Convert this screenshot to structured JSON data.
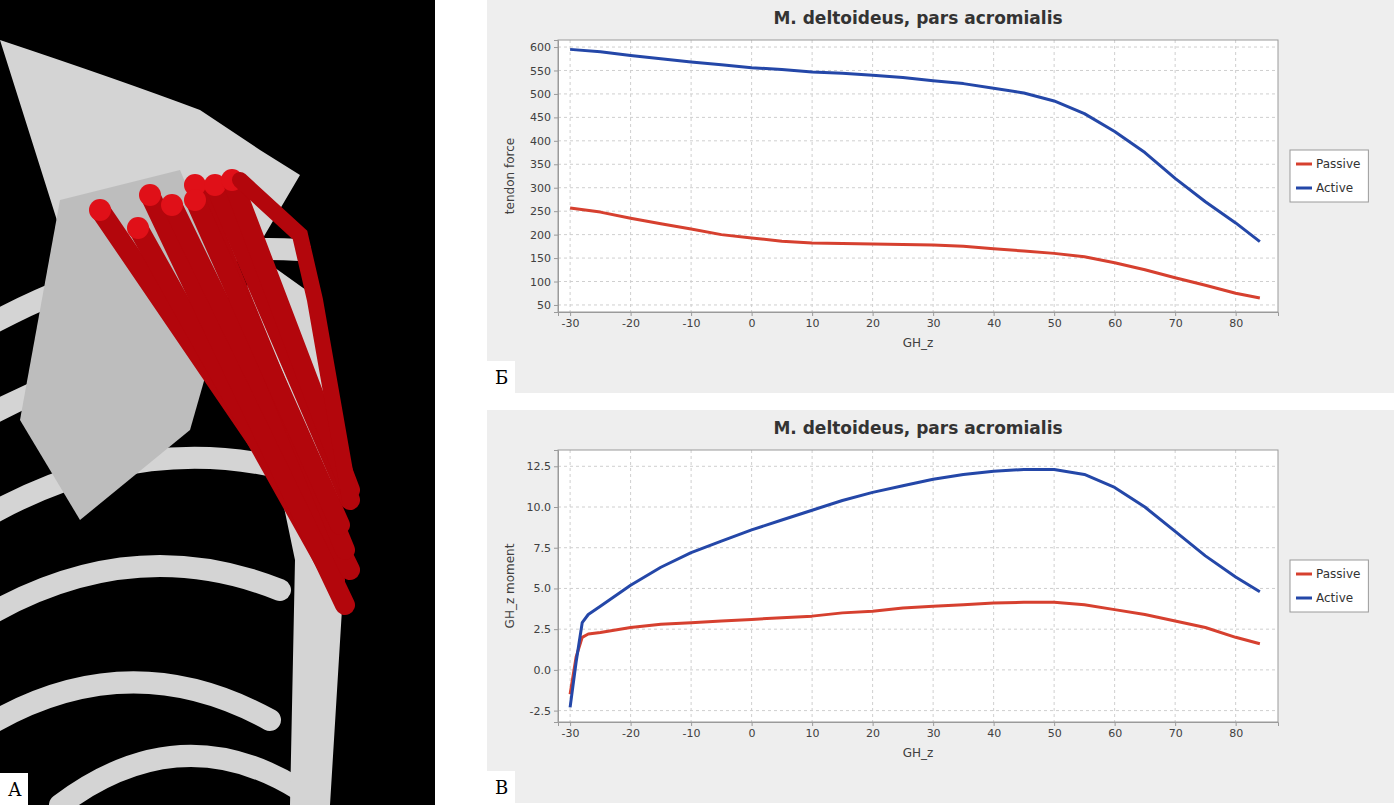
{
  "image_panel": {
    "label": "А"
  },
  "chart_data": [
    {
      "type": "line",
      "panel_label": "Б",
      "title": "M. deltoideus, pars acromialis",
      "x_label": "GH_z",
      "y_label": "tendon force",
      "x": [
        -30,
        -25,
        -20,
        -15,
        -10,
        -5,
        0,
        5,
        10,
        15,
        20,
        25,
        30,
        35,
        40,
        45,
        50,
        55,
        60,
        65,
        70,
        75,
        80,
        84
      ],
      "series": [
        {
          "name": "Passive",
          "color": "#d6402f",
          "line_style": "solid",
          "values": [
            257,
            248,
            235,
            223,
            212,
            200,
            193,
            186,
            182,
            181,
            180,
            179,
            178,
            175,
            170,
            165,
            160,
            153,
            140,
            125,
            108,
            92,
            75,
            65
          ]
        },
        {
          "name": "Active",
          "color": "#2447a8",
          "line_style": "solid",
          "values": [
            595,
            590,
            582,
            575,
            568,
            562,
            556,
            552,
            547,
            544,
            540,
            535,
            528,
            522,
            512,
            502,
            485,
            458,
            420,
            375,
            320,
            270,
            225,
            185
          ]
        }
      ],
      "xlim": [
        -32,
        87
      ],
      "xticks": [
        -30,
        -20,
        -10,
        0,
        10,
        20,
        30,
        40,
        50,
        60,
        70,
        80
      ],
      "ylim": [
        35,
        615
      ],
      "yticks": [
        50,
        100,
        150,
        200,
        250,
        300,
        350,
        400,
        450,
        500,
        550,
        600
      ],
      "grid": true,
      "legend": "right"
    },
    {
      "type": "line",
      "panel_label": "В",
      "title": "M. deltoideus, pars acromialis",
      "x_label": "GH_z",
      "y_label": "GH_z moment",
      "x": [
        -30,
        -29,
        -28,
        -27,
        -25,
        -20,
        -15,
        -10,
        -5,
        0,
        5,
        10,
        15,
        20,
        25,
        30,
        35,
        40,
        45,
        50,
        55,
        60,
        65,
        70,
        75,
        80,
        84
      ],
      "series": [
        {
          "name": "Passive",
          "color": "#d6402f",
          "line_style": "solid",
          "values": [
            -1.5,
            0.8,
            2.0,
            2.2,
            2.3,
            2.6,
            2.8,
            2.9,
            3.0,
            3.1,
            3.2,
            3.3,
            3.5,
            3.6,
            3.8,
            3.9,
            4.0,
            4.1,
            4.15,
            4.15,
            4.0,
            3.7,
            3.4,
            3.0,
            2.6,
            2.0,
            1.6
          ]
        },
        {
          "name": "Active",
          "color": "#2447a8",
          "line_style": "solid",
          "values": [
            -2.3,
            0.5,
            2.9,
            3.4,
            3.9,
            5.2,
            6.3,
            7.2,
            7.9,
            8.6,
            9.2,
            9.8,
            10.4,
            10.9,
            11.3,
            11.7,
            12.0,
            12.2,
            12.3,
            12.3,
            12.0,
            11.2,
            10.0,
            8.5,
            7.0,
            5.7,
            4.8
          ]
        }
      ],
      "xlim": [
        -32,
        87
      ],
      "xticks": [
        -30,
        -20,
        -10,
        0,
        10,
        20,
        30,
        40,
        50,
        60,
        70,
        80
      ],
      "ylim": [
        -3.2,
        13.5
      ],
      "yticks": [
        -2.5,
        {
          "value": 0,
          "label": "0.0"
        },
        2.5,
        {
          "value": 5,
          "label": "5.0"
        },
        7.5,
        {
          "value": 10,
          "label": "10.0"
        },
        12.5
      ],
      "grid": true,
      "legend": "right"
    }
  ]
}
